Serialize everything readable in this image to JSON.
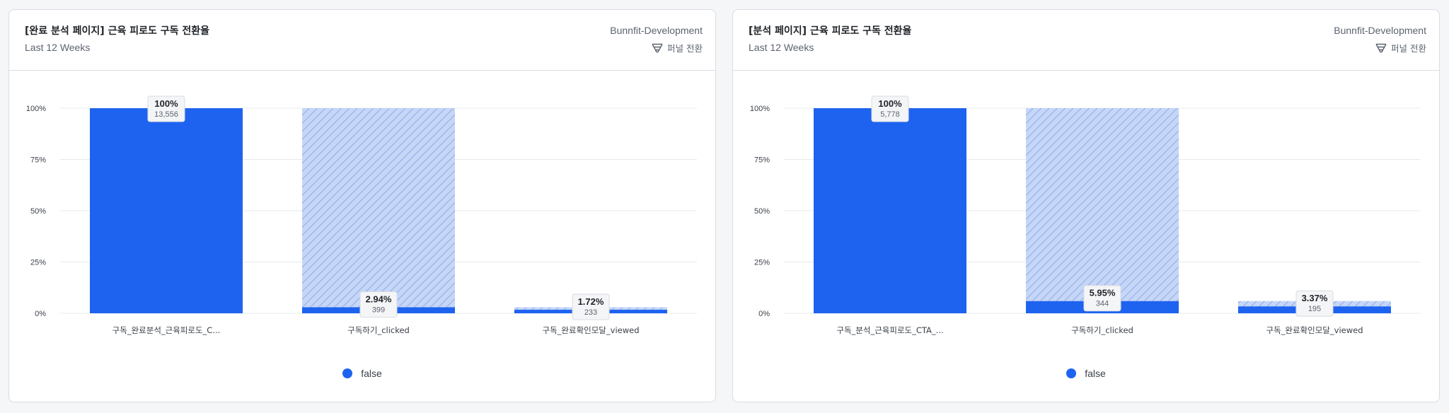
{
  "colors": {
    "bar": "#1e63f0",
    "dropoff": "#c6d6f7",
    "dropoff_stripe": "#9fb9ee",
    "grid": "#e6e8ec",
    "axis_text": "#3b4049"
  },
  "cards": [
    {
      "title": "[완료 분석 페이지] 근육 피로도 구독 전환율",
      "subtitle": "Last 12 Weeks",
      "project": "Bunnfit-Development",
      "mode_icon": "funnel-icon",
      "mode_label": "퍼널 전환",
      "legend": [
        {
          "label": "false",
          "color": "#1e63f0"
        }
      ]
    },
    {
      "title": "[분석 페이지] 근육 피로도 구독 전환율",
      "subtitle": "Last 12 Weeks",
      "project": "Bunnfit-Development",
      "mode_icon": "funnel-icon",
      "mode_label": "퍼널 전환",
      "legend": [
        {
          "label": "false",
          "color": "#1e63f0"
        }
      ]
    }
  ],
  "chart_data": [
    {
      "type": "bar",
      "y_ticks": [
        "100%",
        "75%",
        "50%",
        "25%",
        "0%"
      ],
      "ylim": [
        0,
        100
      ],
      "grid": true,
      "categories": [
        "구독_완료분석_근육피로도_C...",
        "구독하기_clicked",
        "구독_완료확인모달_viewed"
      ],
      "series": [
        {
          "name": "false",
          "values": [
            100,
            2.94,
            1.72
          ],
          "counts": [
            "13,556",
            "399",
            "233"
          ],
          "percent_labels": [
            "100%",
            "2.94%",
            "1.72%"
          ],
          "dropoff_to": [
            100,
            100,
            2.94
          ]
        }
      ]
    },
    {
      "type": "bar",
      "y_ticks": [
        "100%",
        "75%",
        "50%",
        "25%",
        "0%"
      ],
      "ylim": [
        0,
        100
      ],
      "grid": true,
      "categories": [
        "구독_분석_근육피로도_CTA_...",
        "구독하기_clicked",
        "구독_완료확인모달_viewed"
      ],
      "series": [
        {
          "name": "false",
          "values": [
            100,
            5.95,
            3.37
          ],
          "counts": [
            "5,778",
            "344",
            "195"
          ],
          "percent_labels": [
            "100%",
            "5.95%",
            "3.37%"
          ],
          "dropoff_to": [
            100,
            100,
            5.95
          ]
        }
      ]
    }
  ]
}
